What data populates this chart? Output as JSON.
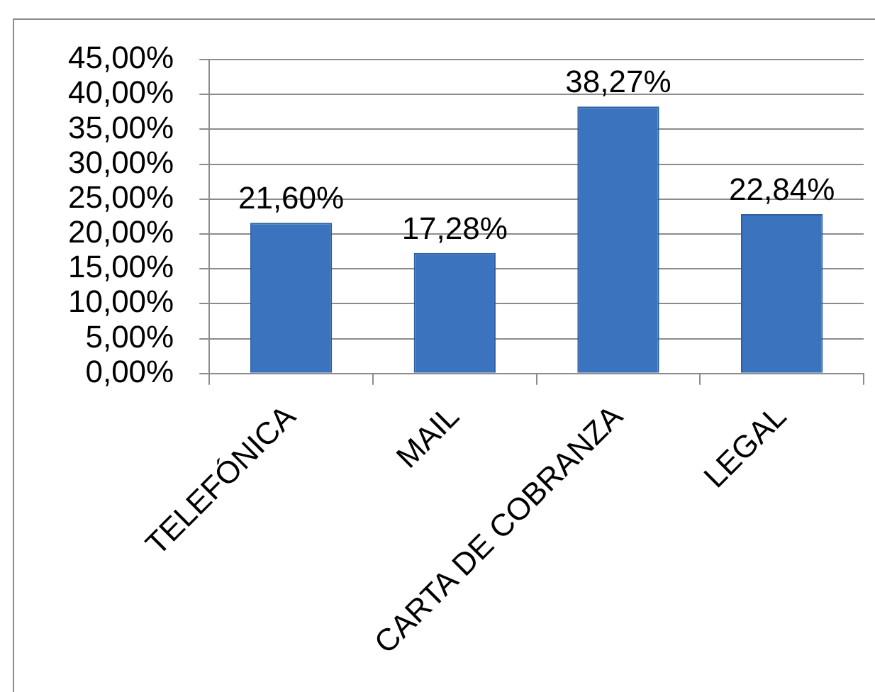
{
  "chart_data": {
    "type": "bar",
    "categories": [
      "TELEFÓNICA",
      "MAIL",
      "CARTA DE COBRANZA",
      "LEGAL"
    ],
    "values": [
      21.6,
      17.28,
      38.27,
      22.84
    ],
    "value_labels": [
      "21,60%",
      "17,28%",
      "38,27%",
      "22,84%"
    ],
    "color": "#3b73bf",
    "ylim": [
      0,
      45
    ],
    "yticks": [
      {
        "value": 0,
        "label": "0,00%"
      },
      {
        "value": 5,
        "label": "5,00%"
      },
      {
        "value": 10,
        "label": "10,00%"
      },
      {
        "value": 15,
        "label": "15,00%"
      },
      {
        "value": 20,
        "label": "20,00%"
      },
      {
        "value": 25,
        "label": "25,00%"
      },
      {
        "value": 30,
        "label": "30,00%"
      },
      {
        "value": 35,
        "label": "35,00%"
      },
      {
        "value": 40,
        "label": "40,00%"
      },
      {
        "value": 45,
        "label": "45,00%"
      }
    ],
    "grid": "y",
    "legend": false
  }
}
